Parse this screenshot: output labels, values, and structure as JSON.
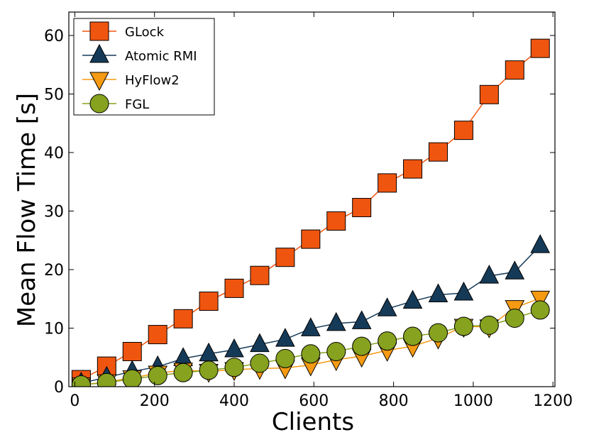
{
  "chart_data": {
    "type": "line",
    "title": "",
    "xlabel": "Clients",
    "ylabel": "Mean Flow Time [s]",
    "xlim": [
      -15,
      1205
    ],
    "ylim": [
      0,
      64
    ],
    "xticks": [
      0,
      200,
      400,
      600,
      800,
      1000,
      1200
    ],
    "yticks": [
      0,
      10,
      20,
      30,
      40,
      50,
      60
    ],
    "x": [
      16,
      80,
      144,
      208,
      272,
      336,
      400,
      464,
      528,
      592,
      656,
      720,
      784,
      848,
      912,
      976,
      1040,
      1104,
      1168
    ],
    "legend_position": "top-left",
    "series": [
      {
        "name": "GLock",
        "color": "#f0550f",
        "marker": "square",
        "values": [
          1.2,
          3.5,
          6.0,
          8.9,
          11.6,
          14.6,
          16.8,
          19.0,
          22.1,
          25.2,
          28.3,
          30.6,
          34.8,
          37.2,
          40.1,
          43.8,
          49.9,
          54.1,
          57.8
        ]
      },
      {
        "name": "Atomic RMI",
        "color": "#153a58",
        "marker": "triangle-up",
        "values": [
          0.6,
          1.6,
          2.6,
          3.4,
          4.8,
          5.6,
          6.3,
          7.2,
          8.1,
          9.9,
          10.8,
          11.1,
          13.3,
          14.6,
          15.7,
          16.0,
          18.9,
          19.6,
          24.1
        ]
      },
      {
        "name": "HyFlow2",
        "color": "#f59a12",
        "marker": "triangle-down",
        "values": [
          0.3,
          0.8,
          1.5,
          2.3,
          2.8,
          2.6,
          2.9,
          3.1,
          3.2,
          3.7,
          4.6,
          5.2,
          6.2,
          6.9,
          8.3,
          10.3,
          10.2,
          13.5,
          15.1
        ]
      },
      {
        "name": "FGL",
        "color": "#86a21e",
        "marker": "circle",
        "values": [
          0.3,
          0.7,
          1.3,
          1.9,
          2.4,
          2.8,
          3.3,
          4.0,
          4.8,
          5.6,
          6.0,
          6.9,
          7.8,
          8.6,
          9.2,
          10.3,
          10.5,
          11.7,
          13.1
        ]
      }
    ]
  }
}
